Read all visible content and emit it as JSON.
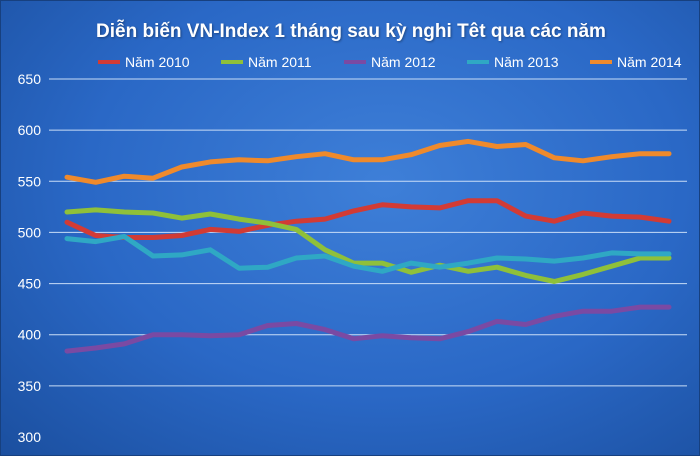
{
  "colors": {
    "gridline": "#c9ddf7",
    "tick_text": "#ffffff",
    "s2010": "#d23b35",
    "s2011": "#8fc03a",
    "s2012": "#7a4aa3",
    "s2013": "#2fa8c4",
    "s2014": "#ef8a2c"
  },
  "chart_data": {
    "type": "line",
    "title": "Diễn biến VN-Index 1 tháng sau kỳ nghi Têt qua các năm",
    "xlabel": "",
    "ylabel": "",
    "ylim": [
      300,
      650
    ],
    "yticks": [
      "300",
      "350",
      "400",
      "450",
      "500",
      "550",
      "600",
      "650"
    ],
    "grid": true,
    "legend_position": "top",
    "x": [
      1,
      2,
      3,
      4,
      5,
      6,
      7,
      8,
      9,
      10,
      11,
      12,
      13,
      14,
      15,
      16,
      17,
      18,
      19,
      20,
      21,
      22
    ],
    "series": [
      {
        "name": "Năm 2010",
        "color_key": "s2010",
        "values": [
          510,
          497,
          495,
          495,
          497,
          503,
          501,
          507,
          511,
          513,
          521,
          527,
          525,
          524,
          531,
          531,
          516,
          511,
          519,
          516,
          515,
          511
        ]
      },
      {
        "name": "Năm 2011",
        "color_key": "s2011",
        "values": [
          520,
          522,
          520,
          519,
          514,
          518,
          513,
          509,
          503,
          483,
          470,
          470,
          461,
          468,
          462,
          466,
          458,
          452,
          459,
          467,
          475,
          475
        ]
      },
      {
        "name": "Năm 2012",
        "color_key": "s2012",
        "values": [
          384,
          387,
          391,
          400,
          400,
          399,
          400,
          409,
          411,
          405,
          396,
          399,
          397,
          396,
          403,
          413,
          410,
          418,
          423,
          423,
          427,
          427
        ]
      },
      {
        "name": "Năm 2013",
        "color_key": "s2013",
        "values": [
          494,
          491,
          496,
          477,
          478,
          483,
          465,
          466,
          475,
          477,
          467,
          462,
          470,
          466,
          470,
          475,
          474,
          472,
          475,
          480,
          479,
          479
        ]
      },
      {
        "name": "Năm 2014",
        "color_key": "s2014",
        "values": [
          554,
          549,
          555,
          553,
          564,
          569,
          571,
          570,
          574,
          577,
          571,
          571,
          576,
          585,
          589,
          584,
          586,
          573,
          570,
          574,
          577,
          577
        ]
      }
    ]
  }
}
